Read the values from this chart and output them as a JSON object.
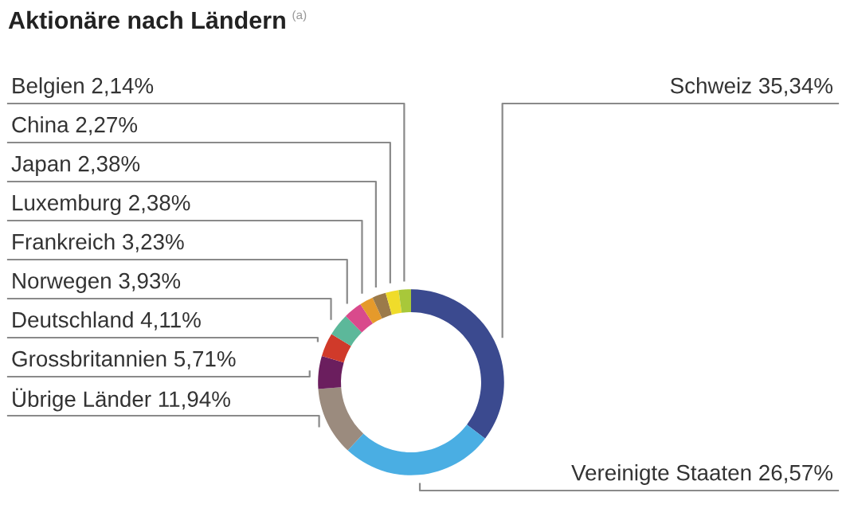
{
  "chart_data": {
    "type": "donut",
    "title": "Aktionäre nach Ländern",
    "annotations": [
      "(a)"
    ],
    "categories": [
      "Schweiz",
      "Vereinigte Staaten",
      "Übrige Länder",
      "Grossbritannien",
      "Deutschland",
      "Norwegen",
      "Frankreich",
      "Luxemburg",
      "Japan",
      "China",
      "Belgien"
    ],
    "values": [
      35.34,
      26.57,
      11.94,
      5.71,
      4.11,
      3.93,
      3.23,
      2.38,
      2.38,
      2.27,
      2.14
    ],
    "value_labels": [
      "35,34%",
      "26,57%",
      "11,94%",
      "5,71%",
      "4,11%",
      "3,93%",
      "3,23%",
      "2,38%",
      "2,38%",
      "2,27%",
      "2,14%"
    ],
    "colors": [
      "#3b4a8f",
      "#4aaee3",
      "#9b8b7e",
      "#6b1e5e",
      "#d03a2a",
      "#5cb89a",
      "#d94a8c",
      "#e59a2b",
      "#9b7a4a",
      "#f0dc2a",
      "#a8c83a"
    ],
    "legend": false
  }
}
